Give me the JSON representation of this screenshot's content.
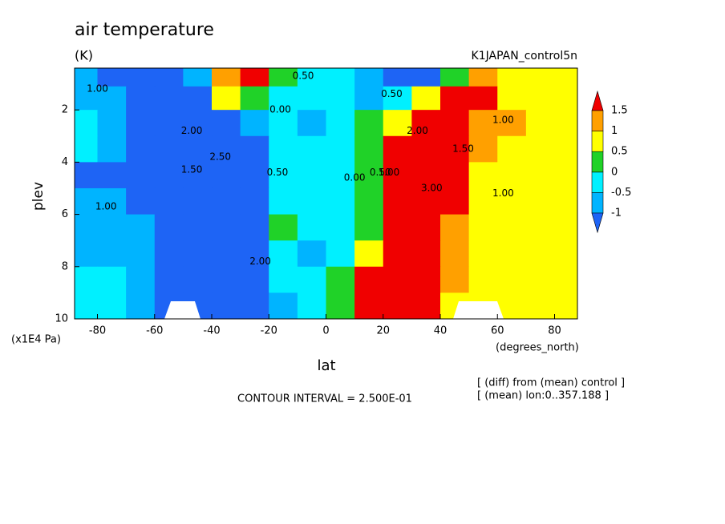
{
  "chart_data": {
    "type": "heatmap",
    "title": "air temperature",
    "units": "(K)",
    "subtitle": "K1JAPAN_control5n",
    "xlabel": "lat",
    "ylabel": "plev",
    "x_unit_label": "(degrees_north)",
    "y_unit_label": "(x1E4 Pa)",
    "contour_interval": "CONTOUR INTERVAL = 2.500E-01",
    "notes": [
      "[ (diff) from (mean) control ]",
      "[ (mean) lon:0..357.188 ]"
    ],
    "xlim": [
      -88,
      88
    ],
    "ylim": [
      10,
      0.4
    ],
    "xticks": [
      -80,
      -60,
      -40,
      -20,
      0,
      20,
      40,
      60,
      80
    ],
    "yticks": [
      2,
      4,
      6,
      8,
      10
    ],
    "levels": [
      -1,
      -0.5,
      0,
      0.5,
      1,
      1.5
    ],
    "colors": [
      "#1e64f5",
      "#00b4ff",
      "#00f0ff",
      "#20d228",
      "#ffff00",
      "#ffa000",
      "#f00000"
    ],
    "x": [
      -85,
      -75,
      -65,
      -55,
      -45,
      -35,
      -25,
      -15,
      -5,
      5,
      15,
      25,
      35,
      45,
      55,
      65,
      75,
      85
    ],
    "y": [
      0.7,
      1.5,
      2.5,
      3.5,
      4.5,
      5.5,
      6.5,
      7.5,
      8.5,
      9.5
    ],
    "z": [
      [
        -1.0,
        -1.2,
        -1.3,
        -1.4,
        -1.0,
        1.2,
        1.6,
        0.3,
        -0.2,
        -0.5,
        -0.9,
        -1.5,
        -1.5,
        0.3,
        1.2,
        0.8,
        0.6,
        0.6
      ],
      [
        -0.8,
        -0.9,
        -1.2,
        -1.5,
        -1.6,
        0.6,
        0.2,
        -0.3,
        -0.4,
        -0.3,
        -0.7,
        -0.4,
        0.6,
        1.6,
        1.5,
        0.8,
        0.6,
        0.6
      ],
      [
        -0.3,
        -0.7,
        -1.3,
        -1.8,
        -2.0,
        -1.2,
        -0.8,
        -0.4,
        -0.6,
        -0.3,
        0.2,
        0.7,
        2.0,
        2.0,
        1.3,
        1.0,
        0.7,
        0.6
      ],
      [
        -0.4,
        -0.8,
        -1.3,
        -1.6,
        -2.2,
        -2.0,
        -1.5,
        -0.3,
        -0.3,
        -0.2,
        0.3,
        1.5,
        2.8,
        1.8,
        1.1,
        0.8,
        0.7,
        0.6
      ],
      [
        -1.2,
        -1.3,
        -1.4,
        -1.6,
        -2.4,
        -2.5,
        -1.5,
        -0.5,
        -0.3,
        -0.1,
        0.4,
        1.8,
        3.2,
        1.5,
        0.9,
        0.7,
        0.6,
        0.6
      ],
      [
        -1.0,
        -1.0,
        -1.2,
        -1.5,
        -2.2,
        -2.3,
        -1.2,
        -0.3,
        -0.2,
        -0.1,
        0.3,
        1.8,
        3.0,
        1.5,
        0.8,
        0.6,
        0.6,
        0.6
      ],
      [
        -0.8,
        -0.8,
        -1.0,
        -1.3,
        -2.0,
        -2.2,
        -1.2,
        0.2,
        -0.3,
        -0.2,
        0.3,
        2.0,
        2.5,
        1.2,
        0.8,
        0.6,
        0.6,
        0.6
      ],
      [
        -0.7,
        -0.8,
        -0.9,
        -1.2,
        -1.8,
        -2.0,
        -1.5,
        -0.3,
        -0.6,
        -0.1,
        0.8,
        2.0,
        2.5,
        1.2,
        0.8,
        0.6,
        0.6,
        0.6
      ],
      [
        -0.3,
        -0.4,
        -0.7,
        -1.2,
        -1.6,
        -1.8,
        -1.5,
        -0.5,
        -0.3,
        0.1,
        1.5,
        2.5,
        2.0,
        1.0,
        0.8,
        0.7,
        0.6,
        0.6
      ],
      [
        -0.3,
        -0.3,
        -0.6,
        -1.3,
        -1.5,
        -1.6,
        -1.5,
        -0.8,
        -0.2,
        0.3,
        2.0,
        2.0,
        1.8,
        0.8,
        0.7,
        0.7,
        0.6,
        0.6
      ]
    ],
    "annotations": [
      {
        "text": "1.00",
        "x": -80,
        "y": 1.2
      },
      {
        "text": "2.00",
        "x": -47,
        "y": 2.8
      },
      {
        "text": "1.50",
        "x": -47,
        "y": 4.3
      },
      {
        "text": "2.50",
        "x": -37,
        "y": 3.8
      },
      {
        "text": "1.00",
        "x": -77,
        "y": 5.7
      },
      {
        "text": "2.00",
        "x": -23,
        "y": 7.8
      },
      {
        "text": "0.50",
        "x": -17,
        "y": 4.4
      },
      {
        "text": "0.50",
        "x": -8,
        "y": 0.7
      },
      {
        "text": "0.00",
        "x": -16,
        "y": 2.0
      },
      {
        "text": "0.50",
        "x": 23,
        "y": 1.4
      },
      {
        "text": "0.00",
        "x": 10,
        "y": 4.6
      },
      {
        "text": "0.50",
        "x": 19,
        "y": 4.4
      },
      {
        "text": "1.00",
        "x": 22,
        "y": 4.4
      },
      {
        "text": "2.00",
        "x": 32,
        "y": 2.8
      },
      {
        "text": "3.00",
        "x": 37,
        "y": 5.0
      },
      {
        "text": "1.50",
        "x": 48,
        "y": 3.5
      },
      {
        "text": "1.00",
        "x": 62,
        "y": 2.4
      },
      {
        "text": "1.00",
        "x": 62,
        "y": 5.2
      }
    ]
  }
}
